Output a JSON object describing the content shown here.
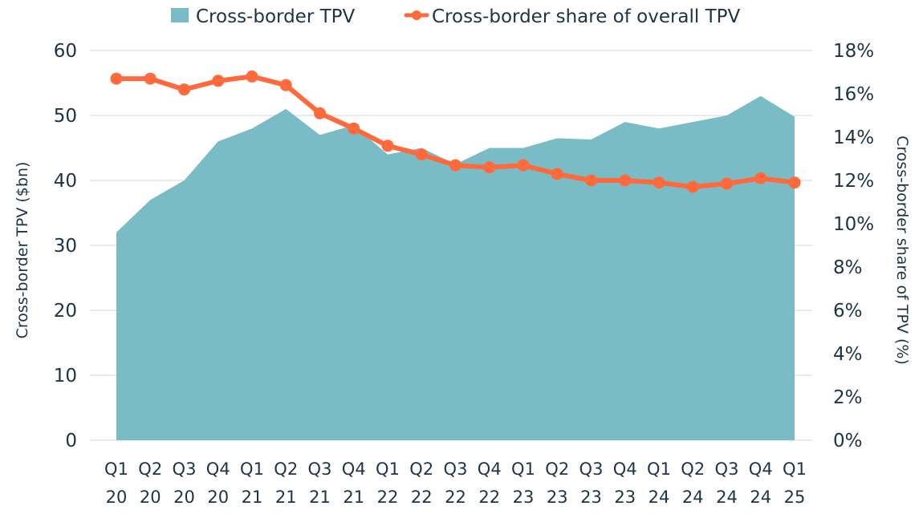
{
  "chart_data": {
    "type": "area",
    "title": "",
    "legend": {
      "placement": "top-center",
      "entries": [
        {
          "label": "Cross-border TPV",
          "marker": "square",
          "color": "#7abcc5"
        },
        {
          "label": "Cross-border share of overall TPV",
          "marker": "line-dot",
          "color": "#ff6a3d"
        }
      ]
    },
    "categories": [
      [
        "Q1",
        "20"
      ],
      [
        "Q2",
        "20"
      ],
      [
        "Q3",
        "20"
      ],
      [
        "Q4",
        "20"
      ],
      [
        "Q1",
        "21"
      ],
      [
        "Q2",
        "21"
      ],
      [
        "Q3",
        "21"
      ],
      [
        "Q4",
        "21"
      ],
      [
        "Q1",
        "22"
      ],
      [
        "Q2",
        "22"
      ],
      [
        "Q3",
        "22"
      ],
      [
        "Q4",
        "22"
      ],
      [
        "Q1",
        "23"
      ],
      [
        "Q2",
        "23"
      ],
      [
        "Q3",
        "23"
      ],
      [
        "Q4",
        "23"
      ],
      [
        "Q1",
        "24"
      ],
      [
        "Q2",
        "24"
      ],
      [
        "Q3",
        "24"
      ],
      [
        "Q4",
        "24"
      ],
      [
        "Q1",
        "25"
      ]
    ],
    "series": [
      {
        "name": "Cross-border TPV",
        "type": "area",
        "axis": "left",
        "color": "#7abcc5",
        "values": [
          32,
          37,
          40,
          46,
          48,
          51,
          47,
          48.5,
          44,
          45,
          42.5,
          45,
          45,
          46.5,
          46.3,
          49,
          48,
          49,
          50,
          53,
          49.8
        ]
      },
      {
        "name": "Cross-border share of overall TPV",
        "type": "line",
        "axis": "right",
        "color": "#ff6a3d",
        "values": [
          16.7,
          16.7,
          16.2,
          16.6,
          16.8,
          16.4,
          15.1,
          14.4,
          13.6,
          13.2,
          12.7,
          12.6,
          12.7,
          12.3,
          12.0,
          12.0,
          11.9,
          11.7,
          11.85,
          12.1,
          11.9
        ]
      }
    ],
    "y_left": {
      "label": "Cross-border TPV ($bn)",
      "range": [
        0,
        60
      ],
      "ticks": [
        "0",
        "10",
        "20",
        "30",
        "40",
        "50",
        "60"
      ],
      "tick_values": [
        0,
        10,
        20,
        30,
        40,
        50,
        60
      ]
    },
    "y_right": {
      "label": "Cross-border share of TPV (%)",
      "range": [
        0,
        18
      ],
      "ticks": [
        "0%",
        "2%",
        "4%",
        "6%",
        "8%",
        "10%",
        "12%",
        "14%",
        "16%",
        "18%"
      ],
      "tick_values": [
        0,
        2,
        4,
        6,
        8,
        10,
        12,
        14,
        16,
        18
      ]
    },
    "grid": true,
    "gridline_color": "#e3e3e3"
  }
}
